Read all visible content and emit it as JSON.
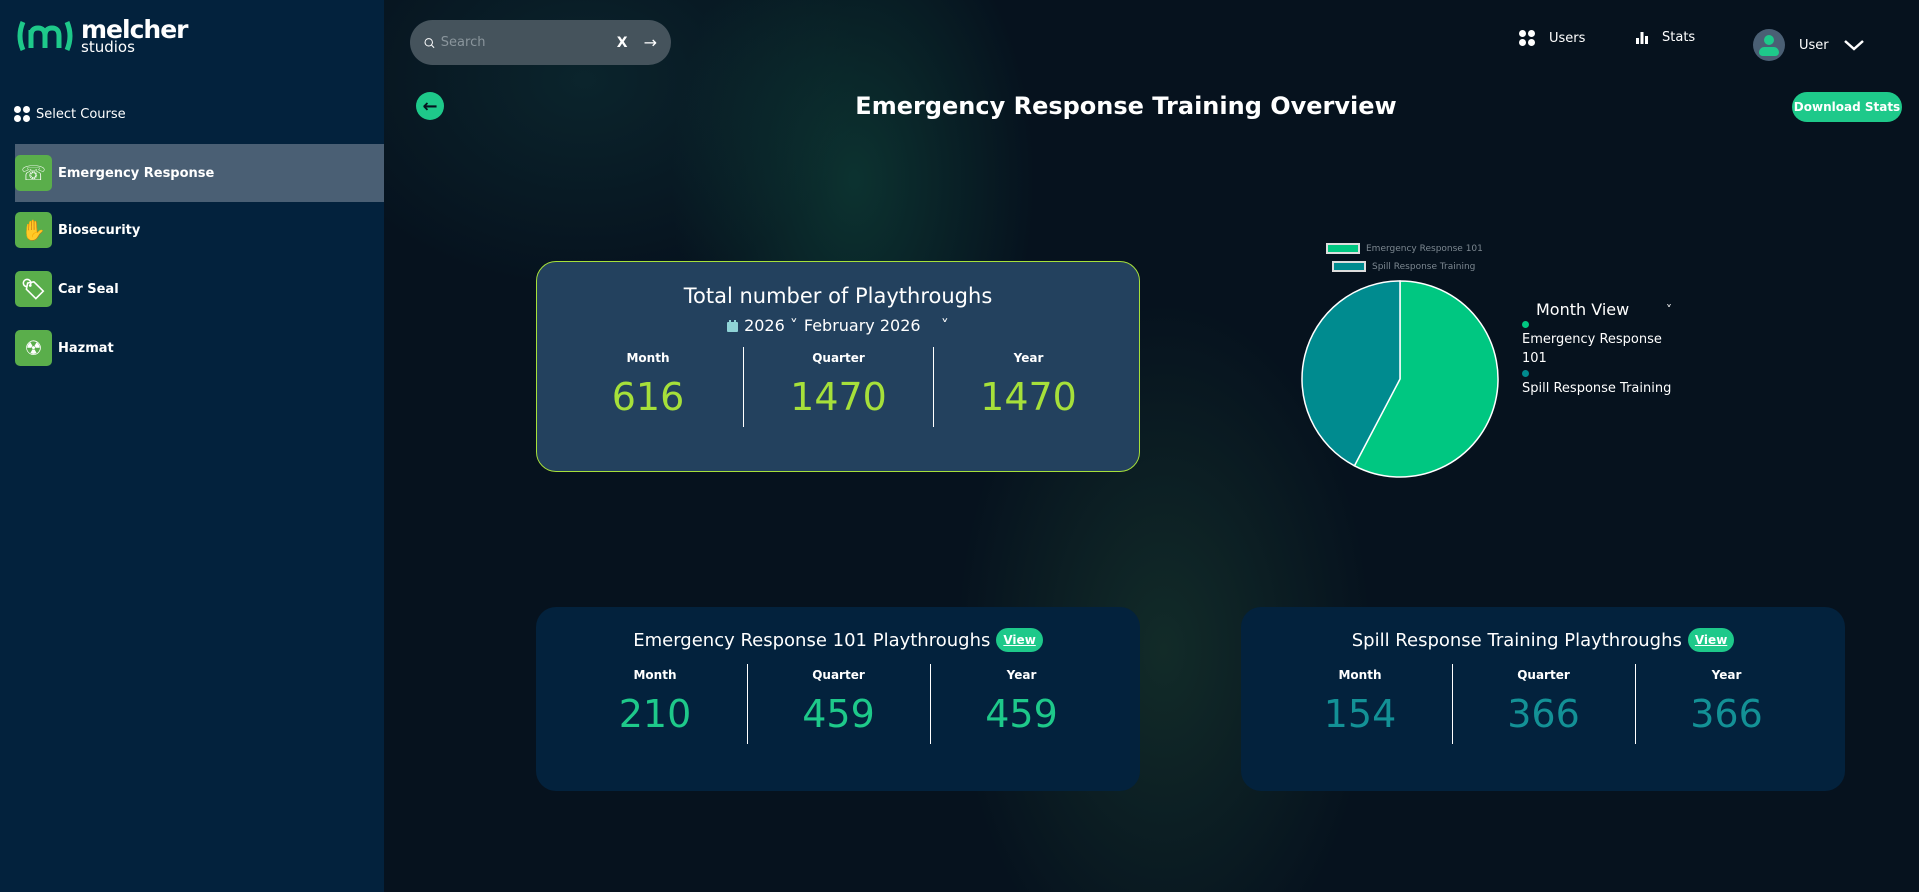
{
  "brand": {
    "name": "melcher",
    "sub": "studios"
  },
  "sidebar": {
    "select_label": "Select Course",
    "items": [
      {
        "label": "Emergency Response",
        "icon": "phone-plus-icon",
        "active": true
      },
      {
        "label": "Biosecurity",
        "icon": "hand-leaf-icon"
      },
      {
        "label": "Car Seal",
        "icon": "tag-seal-icon"
      },
      {
        "label": "Hazmat",
        "icon": "gas-mask-icon"
      }
    ]
  },
  "search": {
    "placeholder": "Search",
    "clear": "X",
    "go": "→"
  },
  "nav": {
    "users": "Users",
    "stats": "Stats",
    "user": "User"
  },
  "page": {
    "title": "Emergency Response Training Overview",
    "download": "Download Stats"
  },
  "total": {
    "title": "Total number of Playthroughs",
    "year": "2026",
    "month": "February 2026",
    "stats": [
      {
        "label": "Month",
        "value": "616"
      },
      {
        "label": "Quarter",
        "value": "1470"
      },
      {
        "label": "Year",
        "value": "1470"
      }
    ]
  },
  "courses": [
    {
      "title": "Emergency Response 101 Playthroughs",
      "view": "View",
      "color": "#1ec98a",
      "stats": [
        {
          "label": "Month",
          "value": "210"
        },
        {
          "label": "Quarter",
          "value": "459"
        },
        {
          "label": "Year",
          "value": "459"
        }
      ]
    },
    {
      "title": "Spill Response Training Playthroughs",
      "view": "View",
      "color": "#139196",
      "stats": [
        {
          "label": "Month",
          "value": "154"
        },
        {
          "label": "Quarter",
          "value": "366"
        },
        {
          "label": "Year",
          "value": "366"
        }
      ]
    }
  ],
  "colors": {
    "accent": "#1ec98a",
    "lime": "#a6e03a",
    "teal": "#139196"
  },
  "chart_data": {
    "type": "pie",
    "view": "Month View",
    "categories": [
      "Emergency Response 101",
      "Spill Response Training"
    ],
    "values": [
      210,
      154
    ],
    "colors": [
      "#00c781",
      "#008b8f"
    ],
    "legend": "top"
  }
}
